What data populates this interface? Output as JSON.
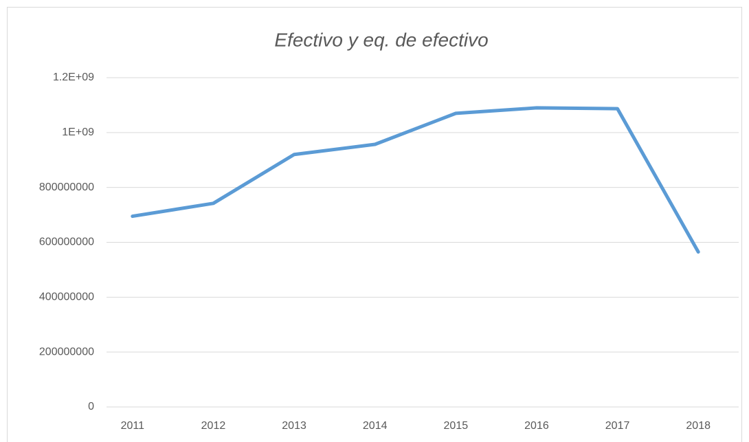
{
  "chart_data": {
    "type": "line",
    "title": "Efectivo y eq. de efectivo",
    "categories": [
      "2011",
      "2012",
      "2013",
      "2014",
      "2015",
      "2016",
      "2017",
      "2018"
    ],
    "series": [
      {
        "name": "Efectivo y eq. de efectivo",
        "color": "#5b9bd5",
        "values": [
          695000000,
          742000000,
          920000000,
          957000000,
          1070000000,
          1090000000,
          1087000000,
          565000000
        ]
      }
    ],
    "ylim": [
      0,
      1200000000
    ],
    "yticks": [
      0,
      200000000,
      400000000,
      600000000,
      800000000,
      {
        "value": 1000000000,
        "label": "1E+09"
      },
      {
        "value": 1200000000,
        "label": "1.2E+09"
      }
    ],
    "grid": true
  }
}
